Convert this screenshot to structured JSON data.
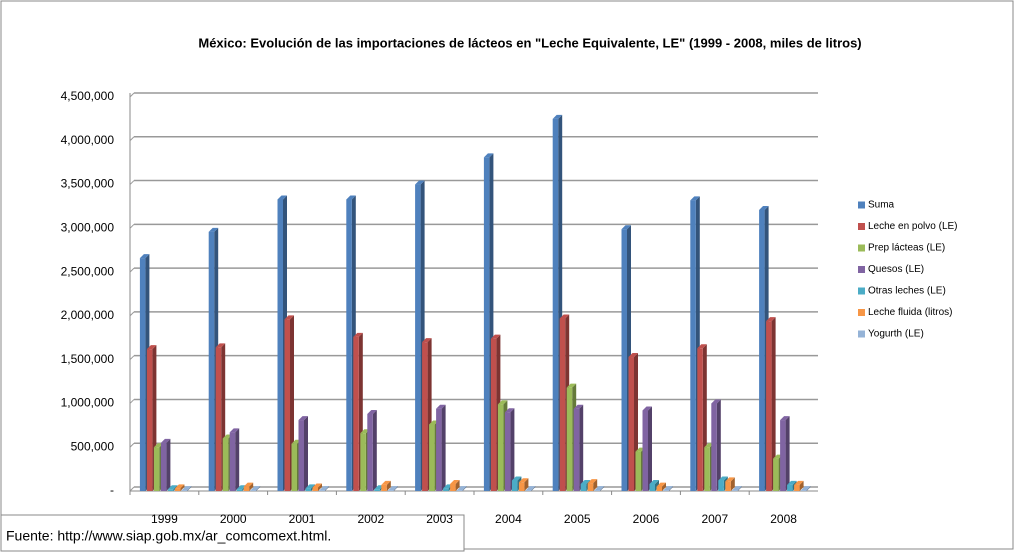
{
  "chart_data": {
    "type": "bar",
    "title": "México: Evolución de las importaciones de lácteos en \"Leche Equivalente, LE\" (1999  - 2008,  miles de litros)",
    "categories": [
      "1999",
      "2000",
      "2001",
      "2002",
      "2003",
      "2004",
      "2005",
      "2006",
      "2007",
      "2008"
    ],
    "series": [
      {
        "name": "Suma",
        "color": "#4f81bd",
        "values": [
          2660000,
          2960000,
          3330000,
          3330000,
          3500000,
          3810000,
          4250000,
          2990000,
          3320000,
          3210000
        ]
      },
      {
        "name": "Leche en polvo (LE)",
        "color": "#c0504d",
        "values": [
          1620000,
          1640000,
          1960000,
          1760000,
          1700000,
          1740000,
          1970000,
          1530000,
          1630000,
          1940000
        ]
      },
      {
        "name": "Prep lácteas (LE)",
        "color": "#9bbb59",
        "values": [
          500000,
          600000,
          540000,
          660000,
          760000,
          990000,
          1180000,
          450000,
          500000,
          370000
        ]
      },
      {
        "name": "Quesos (LE)",
        "color": "#8064a2",
        "values": [
          550000,
          670000,
          810000,
          880000,
          940000,
          900000,
          940000,
          920000,
          1000000,
          810000
        ]
      },
      {
        "name": "Otras leches (LE)",
        "color": "#4bacc6",
        "values": [
          20000,
          20000,
          30000,
          20000,
          30000,
          120000,
          80000,
          80000,
          120000,
          70000
        ]
      },
      {
        "name": "Leche fluida (litros)",
        "color": "#f79646",
        "values": [
          30000,
          50000,
          40000,
          70000,
          80000,
          100000,
          90000,
          50000,
          110000,
          70000
        ]
      },
      {
        "name": "Yogurth (LE)",
        "color": "#95b3d7",
        "values": [
          10000,
          10000,
          10000,
          10000,
          10000,
          10000,
          10000,
          10000,
          10000,
          10000
        ]
      }
    ],
    "ylim": [
      0,
      4500000
    ],
    "yticks": [
      {
        "value": 0,
        "label": "-"
      },
      {
        "value": 500000,
        "label": "500,000"
      },
      {
        "value": 1000000,
        "label": "1,000,000"
      },
      {
        "value": 1500000,
        "label": "1,500,000"
      },
      {
        "value": 2000000,
        "label": "2,000,000"
      },
      {
        "value": 2500000,
        "label": "2,500,000"
      },
      {
        "value": 3000000,
        "label": "3,000,000"
      },
      {
        "value": 3500000,
        "label": "3,500,000"
      },
      {
        "value": 4000000,
        "label": "4,000,000"
      },
      {
        "value": 4500000,
        "label": "4,500,000"
      }
    ],
    "grid": true,
    "legend": "right",
    "source": "Fuente: http://www.siap.gob.mx/ar_comcomext.html."
  }
}
